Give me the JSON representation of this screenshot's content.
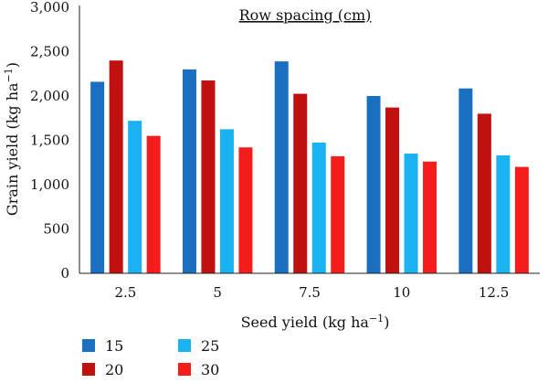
{
  "chart_data": {
    "type": "bar",
    "title": "Row spacing (cm)",
    "xlabel": "Seed yield (kg ha",
    "xlabel_sup": "−1",
    "xlabel_end": ")",
    "ylabel": "Grain yield (kg ha",
    "ylabel_sup": "−1",
    "ylabel_end": ")",
    "ylim": [
      0,
      3000
    ],
    "yticks": [
      0,
      500,
      1000,
      1500,
      2000,
      2500,
      3000
    ],
    "ytick_labels": [
      "0",
      "500",
      "1,000",
      "1,500",
      "2,000",
      "2,500",
      "3,000"
    ],
    "categories": [
      "2.5",
      "5",
      "7.5",
      "10",
      "12.5"
    ],
    "grid": false,
    "legend_placement": "bottom-left",
    "series": [
      {
        "name": "15",
        "color": "#1a6fc0",
        "values": [
          2160,
          2300,
          2390,
          2000,
          2085
        ]
      },
      {
        "name": "20",
        "color": "#c01010",
        "values": [
          2400,
          2175,
          2025,
          1870,
          1800
        ]
      },
      {
        "name": "25",
        "color": "#1ab2f0",
        "values": [
          1720,
          1625,
          1475,
          1350,
          1330
        ]
      },
      {
        "name": "30",
        "color": "#f51c1c",
        "values": [
          1550,
          1420,
          1320,
          1260,
          1200
        ]
      }
    ]
  }
}
